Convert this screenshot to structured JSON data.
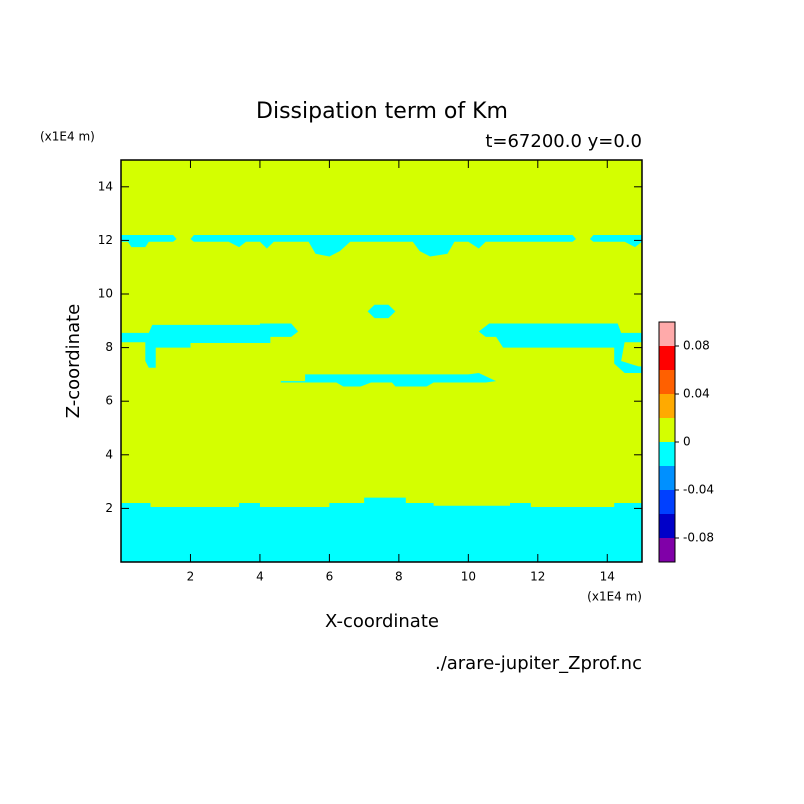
{
  "chart_data": {
    "type": "contour",
    "title": "Dissipation term of Km",
    "subtitle": "t=67200.0 y=0.0",
    "x_label": "X-coordinate",
    "y_label": "Z-coordinate",
    "x_unit": "(x1E4 m)",
    "y_unit": "(x1E4 m)",
    "source": "./arare-jupiter_Zprof.nc",
    "xlim": [
      0,
      15
    ],
    "ylim": [
      0,
      15
    ],
    "xticks": [
      2,
      4,
      6,
      8,
      10,
      12,
      14
    ],
    "yticks": [
      2,
      4,
      6,
      8,
      10,
      12,
      14
    ],
    "levels": [
      -0.1,
      -0.08,
      -0.06,
      -0.04,
      -0.02,
      0,
      0.02,
      0.04,
      0.06,
      0.08,
      0.1
    ],
    "colors": [
      "#8000a8",
      "#0000c8",
      "#0040ff",
      "#0090ff",
      "#00ffff",
      "#d4ff00",
      "#ffaa00",
      "#ff6000",
      "#ff0000",
      "#ffaaaa"
    ],
    "colorbar_ticks": [
      -0.08,
      -0.04,
      0,
      0.04,
      0.08
    ],
    "regions": [
      {
        "level": 0,
        "points": [
          [
            0,
            0
          ],
          [
            15,
            0
          ],
          [
            15,
            15
          ],
          [
            0,
            15
          ]
        ]
      },
      {
        "level": -0.02,
        "points": [
          [
            0,
            0
          ],
          [
            15,
            0
          ],
          [
            15,
            2.2
          ],
          [
            14.2,
            2.2
          ],
          [
            14.2,
            2.05
          ],
          [
            11.8,
            2.05
          ],
          [
            11.8,
            2.2
          ],
          [
            11.2,
            2.2
          ],
          [
            11.2,
            2.1
          ],
          [
            9,
            2.1
          ],
          [
            9,
            2.2
          ],
          [
            8.2,
            2.2
          ],
          [
            8.2,
            2.4
          ],
          [
            7,
            2.4
          ],
          [
            7,
            2.2
          ],
          [
            6,
            2.2
          ],
          [
            6,
            2.05
          ],
          [
            4,
            2.05
          ],
          [
            4,
            2.2
          ],
          [
            3.4,
            2.2
          ],
          [
            3.4,
            2.05
          ],
          [
            0.85,
            2.05
          ],
          [
            0.85,
            2.2
          ],
          [
            0,
            2.2
          ]
        ]
      },
      {
        "level": -0.02,
        "points": [
          [
            0,
            12.2
          ],
          [
            1.5,
            12.2
          ],
          [
            1.6,
            12.05
          ],
          [
            1.5,
            11.95
          ],
          [
            0.8,
            11.95
          ],
          [
            0.7,
            11.75
          ],
          [
            0.3,
            11.75
          ],
          [
            0.2,
            11.95
          ],
          [
            0,
            11.95
          ]
        ]
      },
      {
        "level": -0.02,
        "points": [
          [
            2.1,
            12.2
          ],
          [
            13,
            12.2
          ],
          [
            13.1,
            12.05
          ],
          [
            13,
            11.95
          ],
          [
            10.5,
            11.95
          ],
          [
            10.3,
            11.7
          ],
          [
            10,
            11.95
          ],
          [
            9.6,
            11.95
          ],
          [
            9.4,
            11.5
          ],
          [
            8.9,
            11.4
          ],
          [
            8.6,
            11.6
          ],
          [
            8.4,
            11.95
          ],
          [
            6.6,
            11.95
          ],
          [
            6.3,
            11.6
          ],
          [
            6,
            11.4
          ],
          [
            5.6,
            11.5
          ],
          [
            5.4,
            11.95
          ],
          [
            4.4,
            11.95
          ],
          [
            4.2,
            11.7
          ],
          [
            4,
            11.95
          ],
          [
            3.6,
            11.95
          ],
          [
            3.4,
            11.75
          ],
          [
            3.1,
            11.95
          ],
          [
            2.1,
            11.95
          ],
          [
            2,
            12.05
          ]
        ]
      },
      {
        "level": -0.02,
        "points": [
          [
            13.6,
            12.2
          ],
          [
            15,
            12.2
          ],
          [
            15,
            11.95
          ],
          [
            14.8,
            11.75
          ],
          [
            14.5,
            11.95
          ],
          [
            13.6,
            11.95
          ],
          [
            13.5,
            12.05
          ]
        ]
      },
      {
        "level": -0.02,
        "points": [
          [
            7.1,
            9.35
          ],
          [
            7.3,
            9.6
          ],
          [
            7.7,
            9.6
          ],
          [
            7.9,
            9.35
          ],
          [
            7.7,
            9.1
          ],
          [
            7.3,
            9.1
          ]
        ]
      },
      {
        "level": -0.02,
        "points": [
          [
            0,
            8.55
          ],
          [
            0.8,
            8.55
          ],
          [
            0.9,
            8.85
          ],
          [
            4,
            8.85
          ],
          [
            4,
            8.9
          ],
          [
            4.9,
            8.9
          ],
          [
            5.1,
            8.6
          ],
          [
            4.9,
            8.4
          ],
          [
            4.3,
            8.4
          ],
          [
            4.3,
            8.17
          ],
          [
            2,
            8.17
          ],
          [
            2,
            8.0
          ],
          [
            1,
            8.0
          ],
          [
            1,
            7.25
          ],
          [
            0.8,
            7.25
          ],
          [
            0.7,
            7.5
          ],
          [
            0.7,
            8.2
          ],
          [
            0,
            8.2
          ]
        ]
      },
      {
        "level": -0.02,
        "points": [
          [
            10.3,
            8.6
          ],
          [
            10.6,
            8.9
          ],
          [
            14.3,
            8.9
          ],
          [
            14.4,
            8.55
          ],
          [
            15,
            8.55
          ],
          [
            15,
            8.2
          ],
          [
            14.5,
            8.2
          ],
          [
            14.4,
            7.5
          ],
          [
            14.9,
            7.3
          ],
          [
            15,
            7.3
          ],
          [
            15,
            7.05
          ],
          [
            14.5,
            7.05
          ],
          [
            14.2,
            7.4
          ],
          [
            14.2,
            8.0
          ],
          [
            11,
            8.0
          ],
          [
            10.8,
            8.4
          ],
          [
            10.5,
            8.4
          ]
        ]
      },
      {
        "level": -0.02,
        "points": [
          [
            4.6,
            6.75
          ],
          [
            5.3,
            6.75
          ],
          [
            5.3,
            7.0
          ],
          [
            10,
            7.0
          ],
          [
            10.3,
            7.05
          ],
          [
            10.8,
            6.75
          ],
          [
            10.5,
            6.7
          ],
          [
            9,
            6.7
          ],
          [
            8.8,
            6.55
          ],
          [
            7.9,
            6.55
          ],
          [
            7.8,
            6.7
          ],
          [
            7.2,
            6.7
          ],
          [
            6.9,
            6.55
          ],
          [
            6.4,
            6.55
          ],
          [
            6.2,
            6.7
          ],
          [
            4.6,
            6.7
          ]
        ]
      }
    ]
  }
}
